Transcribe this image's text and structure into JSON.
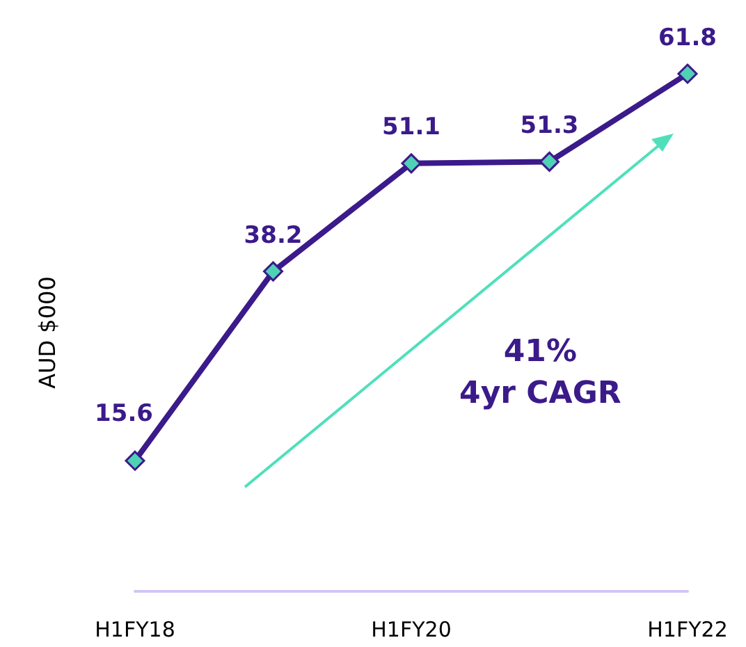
{
  "chart_data": {
    "type": "line",
    "ylabel": "AUD $000",
    "categories": [
      "H1FY18",
      null,
      "H1FY20",
      null,
      "H1FY22"
    ],
    "series": [
      {
        "color": "#3b1a8a",
        "values": [
          15.6,
          38.2,
          51.1,
          51.3,
          61.8
        ]
      }
    ],
    "marker": "diamond",
    "line_style": "solid",
    "data_labels": true,
    "annotations": [
      "41%\n4yr CAGR"
    ]
  }
}
